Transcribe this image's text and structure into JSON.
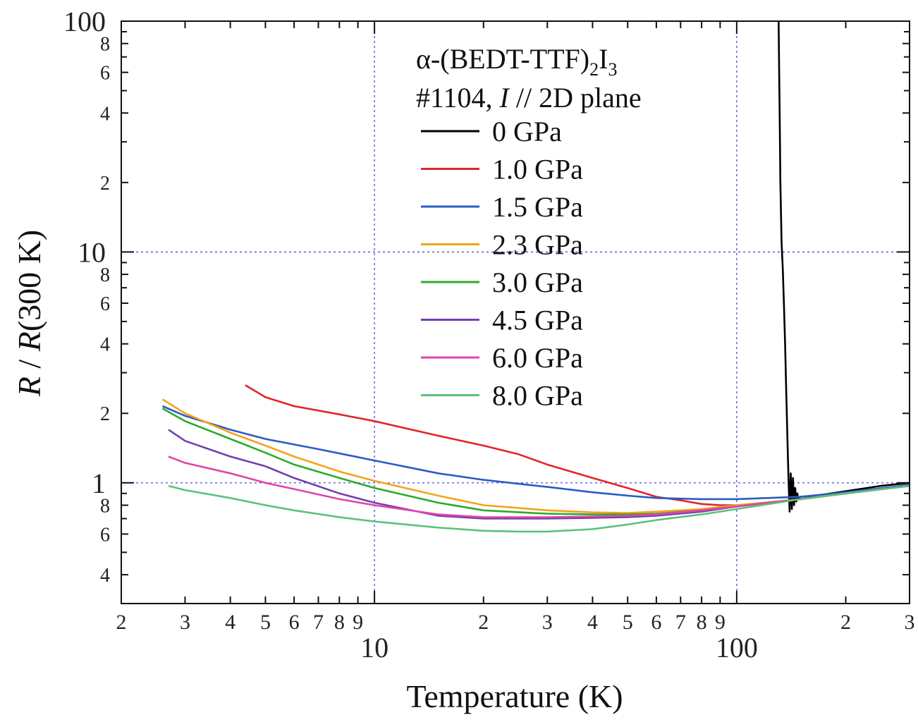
{
  "chart_data": {
    "type": "line",
    "x_scale": "log",
    "y_scale": "log",
    "xlim": [
      2,
      300
    ],
    "ylim": [
      0.3,
      100
    ],
    "xlabel": "Temperature (K)",
    "ylabel_parts": {
      "r1": "R",
      "sep": " / ",
      "r2": "R",
      "rest": "(300 K)"
    },
    "title_line1": {
      "prefix": "α-(BEDT-TTF)",
      "sub1": "2",
      "mid": "I",
      "sub2": "3"
    },
    "title_line2": {
      "prefix": "#1104, ",
      "italic": "I",
      "suffix": " // 2D plane"
    },
    "x_major_ticks": [
      {
        "value": 10,
        "label": "10"
      },
      {
        "value": 100,
        "label": "100"
      }
    ],
    "x_minor_ticks": [
      {
        "value": 2,
        "label": "2"
      },
      {
        "value": 3,
        "label": "3"
      },
      {
        "value": 4,
        "label": "4"
      },
      {
        "value": 5,
        "label": "5"
      },
      {
        "value": 6,
        "label": "6"
      },
      {
        "value": 7,
        "label": "7"
      },
      {
        "value": 8,
        "label": "8"
      },
      {
        "value": 9,
        "label": "9"
      },
      {
        "value": 20,
        "label": "2"
      },
      {
        "value": 30,
        "label": "3"
      },
      {
        "value": 40,
        "label": "4"
      },
      {
        "value": 50,
        "label": "5"
      },
      {
        "value": 60,
        "label": "6"
      },
      {
        "value": 70,
        "label": "7"
      },
      {
        "value": 80,
        "label": "8"
      },
      {
        "value": 90,
        "label": "9"
      },
      {
        "value": 200,
        "label": "2"
      },
      {
        "value": 300,
        "label": "3"
      }
    ],
    "y_major_ticks": [
      {
        "value": 1,
        "label": "1"
      },
      {
        "value": 10,
        "label": "10"
      },
      {
        "value": 100,
        "label": "100"
      }
    ],
    "y_minor_ticks": [
      {
        "value": 0.4,
        "label": "4"
      },
      {
        "value": 0.6,
        "label": "6"
      },
      {
        "value": 0.8,
        "label": "8"
      },
      {
        "value": 2,
        "label": "2"
      },
      {
        "value": 4,
        "label": "4"
      },
      {
        "value": 6,
        "label": "6"
      },
      {
        "value": 8,
        "label": "8"
      },
      {
        "value": 20,
        "label": "2"
      },
      {
        "value": 40,
        "label": "4"
      },
      {
        "value": 60,
        "label": "6"
      },
      {
        "value": 80,
        "label": "8"
      }
    ],
    "gridlines_x": [
      10,
      100
    ],
    "gridlines_y": [
      1,
      10
    ],
    "series": [
      {
        "name": "0 GPa",
        "color": "#000000",
        "points": [
          [
            300,
            1.0
          ],
          [
            250,
            0.97
          ],
          [
            200,
            0.92
          ],
          [
            165,
            0.88
          ],
          [
            150,
            0.87
          ],
          [
            148,
            0.85
          ],
          [
            147,
            0.9
          ],
          [
            146,
            0.83
          ],
          [
            145,
            0.95
          ],
          [
            144,
            0.8
          ],
          [
            143,
            1.05
          ],
          [
            142,
            0.77
          ],
          [
            141,
            1.1
          ],
          [
            140,
            0.75
          ],
          [
            139,
            1.05
          ],
          [
            138,
            1.6
          ],
          [
            137,
            2.5
          ],
          [
            136,
            4.0
          ],
          [
            135,
            6.0
          ],
          [
            134,
            8.5
          ],
          [
            133,
            11.0
          ],
          [
            132,
            20.0
          ],
          [
            131.5,
            35.0
          ],
          [
            131,
            60.0
          ],
          [
            130.5,
            100.0
          ]
        ]
      },
      {
        "name": "1.0 GPa",
        "color": "#e0262b",
        "points": [
          [
            300,
            0.98
          ],
          [
            200,
            0.9
          ],
          [
            150,
            0.85
          ],
          [
            120,
            0.82
          ],
          [
            100,
            0.8
          ],
          [
            90,
            0.8
          ],
          [
            80,
            0.81
          ],
          [
            70,
            0.84
          ],
          [
            60,
            0.87
          ],
          [
            50,
            0.95
          ],
          [
            40,
            1.05
          ],
          [
            30,
            1.2
          ],
          [
            25,
            1.33
          ],
          [
            20,
            1.45
          ],
          [
            15,
            1.6
          ],
          [
            10,
            1.85
          ],
          [
            8,
            1.98
          ],
          [
            6,
            2.15
          ],
          [
            5,
            2.35
          ],
          [
            4.4,
            2.65
          ]
        ]
      },
      {
        "name": "1.5 GPa",
        "color": "#2a5cc4",
        "points": [
          [
            300,
            0.98
          ],
          [
            200,
            0.91
          ],
          [
            150,
            0.87
          ],
          [
            100,
            0.85
          ],
          [
            80,
            0.85
          ],
          [
            60,
            0.86
          ],
          [
            50,
            0.88
          ],
          [
            40,
            0.91
          ],
          [
            30,
            0.96
          ],
          [
            20,
            1.03
          ],
          [
            15,
            1.1
          ],
          [
            10,
            1.25
          ],
          [
            7,
            1.4
          ],
          [
            5,
            1.55
          ],
          [
            4,
            1.7
          ],
          [
            3,
            1.95
          ],
          [
            2.6,
            2.15
          ]
        ]
      },
      {
        "name": "2.3 GPa",
        "color": "#f6a21c",
        "points": [
          [
            300,
            0.97
          ],
          [
            200,
            0.9
          ],
          [
            150,
            0.85
          ],
          [
            100,
            0.8
          ],
          [
            80,
            0.77
          ],
          [
            60,
            0.75
          ],
          [
            50,
            0.74
          ],
          [
            40,
            0.745
          ],
          [
            30,
            0.76
          ],
          [
            20,
            0.8
          ],
          [
            15,
            0.88
          ],
          [
            10,
            1.02
          ],
          [
            8,
            1.12
          ],
          [
            6,
            1.3
          ],
          [
            5,
            1.45
          ],
          [
            4,
            1.65
          ],
          [
            3,
            2.0
          ],
          [
            2.6,
            2.3
          ]
        ]
      },
      {
        "name": "3.0 GPa",
        "color": "#2cab2c",
        "points": [
          [
            300,
            0.97
          ],
          [
            200,
            0.9
          ],
          [
            150,
            0.85
          ],
          [
            100,
            0.79
          ],
          [
            80,
            0.76
          ],
          [
            60,
            0.735
          ],
          [
            50,
            0.73
          ],
          [
            40,
            0.73
          ],
          [
            30,
            0.735
          ],
          [
            20,
            0.76
          ],
          [
            15,
            0.82
          ],
          [
            10,
            0.95
          ],
          [
            8,
            1.05
          ],
          [
            6,
            1.2
          ],
          [
            5,
            1.35
          ],
          [
            4,
            1.55
          ],
          [
            3,
            1.85
          ],
          [
            2.6,
            2.1
          ]
        ]
      },
      {
        "name": "4.5 GPa",
        "color": "#7340b0",
        "points": [
          [
            300,
            0.97
          ],
          [
            200,
            0.9
          ],
          [
            150,
            0.85
          ],
          [
            100,
            0.79
          ],
          [
            80,
            0.75
          ],
          [
            60,
            0.72
          ],
          [
            50,
            0.71
          ],
          [
            40,
            0.705
          ],
          [
            30,
            0.7
          ],
          [
            20,
            0.7
          ],
          [
            15,
            0.72
          ],
          [
            10,
            0.82
          ],
          [
            8,
            0.9
          ],
          [
            6,
            1.05
          ],
          [
            5,
            1.18
          ],
          [
            4,
            1.3
          ],
          [
            3,
            1.52
          ],
          [
            2.7,
            1.7
          ]
        ]
      },
      {
        "name": "6.0 GPa",
        "color": "#e045a8",
        "points": [
          [
            300,
            0.97
          ],
          [
            200,
            0.9
          ],
          [
            150,
            0.85
          ],
          [
            100,
            0.79
          ],
          [
            80,
            0.76
          ],
          [
            60,
            0.73
          ],
          [
            50,
            0.72
          ],
          [
            40,
            0.715
          ],
          [
            30,
            0.71
          ],
          [
            20,
            0.71
          ],
          [
            15,
            0.73
          ],
          [
            10,
            0.8
          ],
          [
            8,
            0.85
          ],
          [
            6,
            0.94
          ],
          [
            5,
            1.0
          ],
          [
            4,
            1.1
          ],
          [
            3,
            1.22
          ],
          [
            2.7,
            1.3
          ]
        ]
      },
      {
        "name": "8.0 GPa",
        "color": "#5bc27a",
        "points": [
          [
            300,
            0.97
          ],
          [
            200,
            0.9
          ],
          [
            150,
            0.85
          ],
          [
            100,
            0.77
          ],
          [
            80,
            0.73
          ],
          [
            60,
            0.69
          ],
          [
            50,
            0.66
          ],
          [
            40,
            0.63
          ],
          [
            30,
            0.615
          ],
          [
            25,
            0.615
          ],
          [
            20,
            0.62
          ],
          [
            15,
            0.64
          ],
          [
            10,
            0.68
          ],
          [
            8,
            0.71
          ],
          [
            6,
            0.76
          ],
          [
            5,
            0.8
          ],
          [
            4,
            0.86
          ],
          [
            3,
            0.93
          ],
          [
            2.7,
            0.97
          ]
        ]
      }
    ]
  }
}
